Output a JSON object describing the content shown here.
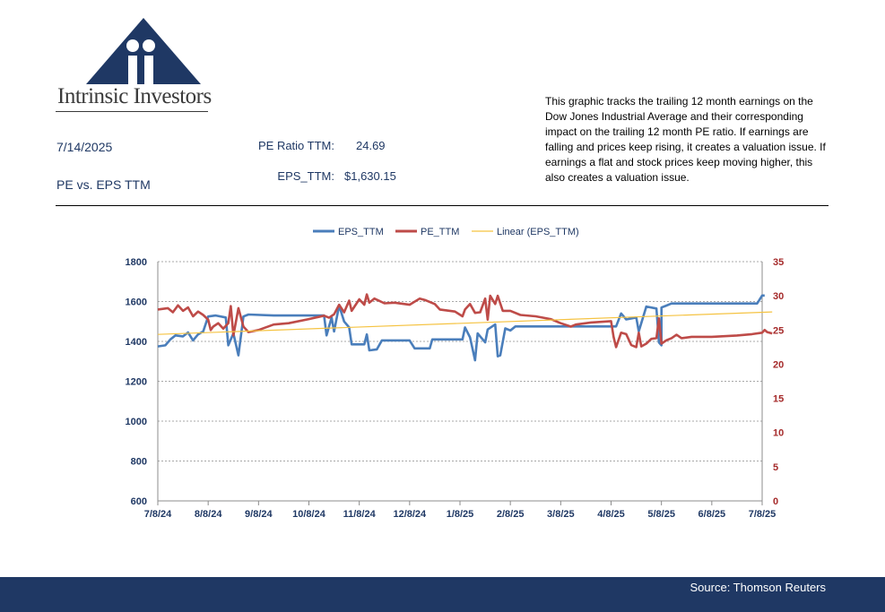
{
  "brand": {
    "name": "Intrinsic Investors"
  },
  "header": {
    "date": "7/14/2025",
    "subtitle": "PE vs. EPS TTM",
    "pe_label": "PE Ratio TTM:",
    "pe_value": "24.69",
    "eps_label": "EPS_TTM:",
    "eps_value": "$1,630.15"
  },
  "description": "This graphic tracks the trailing 12 month earnings on the Dow Jones Industrial Average and their corresponding impact on the trailing 12 month PE ratio.  If earnings are falling and prices keep rising, it creates a valuation issue.  If earnings a flat and stock prices keep moving higher, this also creates a valuation issue.",
  "footer": {
    "source": "Source: Thomson Reuters"
  },
  "colors": {
    "navy": "#1f3864",
    "eps": "#4a7ebb",
    "pe": "#be4b48",
    "trend": "#f5c342"
  },
  "chart_data": {
    "type": "line",
    "legend": [
      "EPS_TTM",
      "PE_TTM",
      "Linear (EPS_TTM)"
    ],
    "legend_position": "top-center",
    "x_labels": [
      "7/8/24",
      "8/8/24",
      "9/8/24",
      "10/8/24",
      "11/8/24",
      "12/8/24",
      "1/8/25",
      "2/8/25",
      "3/8/25",
      "4/8/25",
      "5/8/25",
      "6/8/25",
      "7/8/25"
    ],
    "y_left": {
      "min": 600,
      "max": 1800,
      "ticks": [
        600,
        800,
        1000,
        1200,
        1400,
        1600,
        1800
      ]
    },
    "y_right": {
      "min": 0,
      "max": 35,
      "ticks": [
        0,
        5,
        10,
        15,
        20,
        25,
        30,
        35
      ]
    },
    "grid": true,
    "series": [
      {
        "name": "EPS_TTM",
        "axis": "left",
        "points": [
          [
            0,
            1375
          ],
          [
            0.15,
            1380
          ],
          [
            0.25,
            1410
          ],
          [
            0.35,
            1430
          ],
          [
            0.5,
            1425
          ],
          [
            0.6,
            1445
          ],
          [
            0.7,
            1405
          ],
          [
            0.8,
            1435
          ],
          [
            0.9,
            1450
          ],
          [
            1.0,
            1525
          ],
          [
            1.15,
            1530
          ],
          [
            1.35,
            1520
          ],
          [
            1.4,
            1380
          ],
          [
            1.5,
            1440
          ],
          [
            1.6,
            1330
          ],
          [
            1.7,
            1525
          ],
          [
            1.8,
            1535
          ],
          [
            2.3,
            1530
          ],
          [
            3.0,
            1530
          ],
          [
            3.3,
            1530
          ],
          [
            3.35,
            1430
          ],
          [
            3.45,
            1520
          ],
          [
            3.5,
            1450
          ],
          [
            3.6,
            1580
          ],
          [
            3.7,
            1500
          ],
          [
            3.8,
            1470
          ],
          [
            3.85,
            1385
          ],
          [
            4.1,
            1385
          ],
          [
            4.15,
            1435
          ],
          [
            4.2,
            1355
          ],
          [
            4.35,
            1360
          ],
          [
            4.45,
            1405
          ],
          [
            5.0,
            1405
          ],
          [
            5.1,
            1365
          ],
          [
            5.4,
            1365
          ],
          [
            5.45,
            1410
          ],
          [
            6.05,
            1410
          ],
          [
            6.1,
            1470
          ],
          [
            6.2,
            1420
          ],
          [
            6.3,
            1305
          ],
          [
            6.35,
            1440
          ],
          [
            6.5,
            1395
          ],
          [
            6.55,
            1460
          ],
          [
            6.7,
            1485
          ],
          [
            6.75,
            1325
          ],
          [
            6.8,
            1330
          ],
          [
            6.9,
            1465
          ],
          [
            7.0,
            1455
          ],
          [
            7.1,
            1475
          ],
          [
            7.5,
            1475
          ],
          [
            8.5,
            1475
          ],
          [
            9.0,
            1475
          ],
          [
            9.1,
            1475
          ],
          [
            9.2,
            1540
          ],
          [
            9.3,
            1510
          ],
          [
            9.5,
            1520
          ],
          [
            9.55,
            1450
          ],
          [
            9.7,
            1575
          ],
          [
            9.9,
            1565
          ],
          [
            9.95,
            1395
          ],
          [
            10.0,
            1380
          ],
          [
            10.0,
            1570
          ],
          [
            10.1,
            1580
          ],
          [
            10.2,
            1590
          ],
          [
            11.5,
            1590
          ],
          [
            11.9,
            1590
          ],
          [
            12.0,
            1630
          ],
          [
            12.05,
            1630
          ]
        ]
      },
      {
        "name": "PE_TTM",
        "axis": "right",
        "points": [
          [
            0,
            28.0
          ],
          [
            0.2,
            28.2
          ],
          [
            0.3,
            27.6
          ],
          [
            0.4,
            28.6
          ],
          [
            0.5,
            27.8
          ],
          [
            0.6,
            28.3
          ],
          [
            0.7,
            27.0
          ],
          [
            0.8,
            27.7
          ],
          [
            0.9,
            27.2
          ],
          [
            1.0,
            26.5
          ],
          [
            1.05,
            25.0
          ],
          [
            1.1,
            25.5
          ],
          [
            1.2,
            26.0
          ],
          [
            1.3,
            25.2
          ],
          [
            1.4,
            26.0
          ],
          [
            1.45,
            28.5
          ],
          [
            1.5,
            24.2
          ],
          [
            1.6,
            28.2
          ],
          [
            1.7,
            25.5
          ],
          [
            1.8,
            24.7
          ],
          [
            2.0,
            25.0
          ],
          [
            2.3,
            25.8
          ],
          [
            2.6,
            26.0
          ],
          [
            3.0,
            26.6
          ],
          [
            3.3,
            27.1
          ],
          [
            3.4,
            26.8
          ],
          [
            3.5,
            27.3
          ],
          [
            3.6,
            28.7
          ],
          [
            3.7,
            27.6
          ],
          [
            3.8,
            29.3
          ],
          [
            3.85,
            27.8
          ],
          [
            4.0,
            29.5
          ],
          [
            4.1,
            28.7
          ],
          [
            4.15,
            30.2
          ],
          [
            4.2,
            29.0
          ],
          [
            4.3,
            29.6
          ],
          [
            4.5,
            28.9
          ],
          [
            4.7,
            29.0
          ],
          [
            5.0,
            28.7
          ],
          [
            5.2,
            29.6
          ],
          [
            5.3,
            29.4
          ],
          [
            5.5,
            28.8
          ],
          [
            5.6,
            28.0
          ],
          [
            5.9,
            27.7
          ],
          [
            6.05,
            27.0
          ],
          [
            6.1,
            28.0
          ],
          [
            6.2,
            28.8
          ],
          [
            6.3,
            27.5
          ],
          [
            6.4,
            27.6
          ],
          [
            6.5,
            29.6
          ],
          [
            6.55,
            26.5
          ],
          [
            6.6,
            30.0
          ],
          [
            6.7,
            28.8
          ],
          [
            6.75,
            30.0
          ],
          [
            6.85,
            27.8
          ],
          [
            7.0,
            27.8
          ],
          [
            7.2,
            27.2
          ],
          [
            7.5,
            27.0
          ],
          [
            7.8,
            26.6
          ],
          [
            8.0,
            26.0
          ],
          [
            8.2,
            25.5
          ],
          [
            8.3,
            25.8
          ],
          [
            8.6,
            26.1
          ],
          [
            9.0,
            26.3
          ],
          [
            9.05,
            24.0
          ],
          [
            9.1,
            22.5
          ],
          [
            9.2,
            24.6
          ],
          [
            9.3,
            24.4
          ],
          [
            9.4,
            22.8
          ],
          [
            9.5,
            22.5
          ],
          [
            9.55,
            24.6
          ],
          [
            9.6,
            22.6
          ],
          [
            9.7,
            23.0
          ],
          [
            9.8,
            23.7
          ],
          [
            9.9,
            23.8
          ],
          [
            9.95,
            26.7
          ],
          [
            10.0,
            23.0
          ],
          [
            10.1,
            23.5
          ],
          [
            10.2,
            23.8
          ],
          [
            10.3,
            24.3
          ],
          [
            10.4,
            23.8
          ],
          [
            10.6,
            24.0
          ],
          [
            11.0,
            24.0
          ],
          [
            11.5,
            24.2
          ],
          [
            11.8,
            24.4
          ],
          [
            12.0,
            24.6
          ],
          [
            12.05,
            25.0
          ],
          [
            12.1,
            24.7
          ],
          [
            12.2,
            24.5
          ]
        ]
      },
      {
        "name": "Linear (EPS_TTM)",
        "axis": "left",
        "points": [
          [
            0,
            1435
          ],
          [
            12.2,
            1548
          ]
        ]
      }
    ]
  }
}
